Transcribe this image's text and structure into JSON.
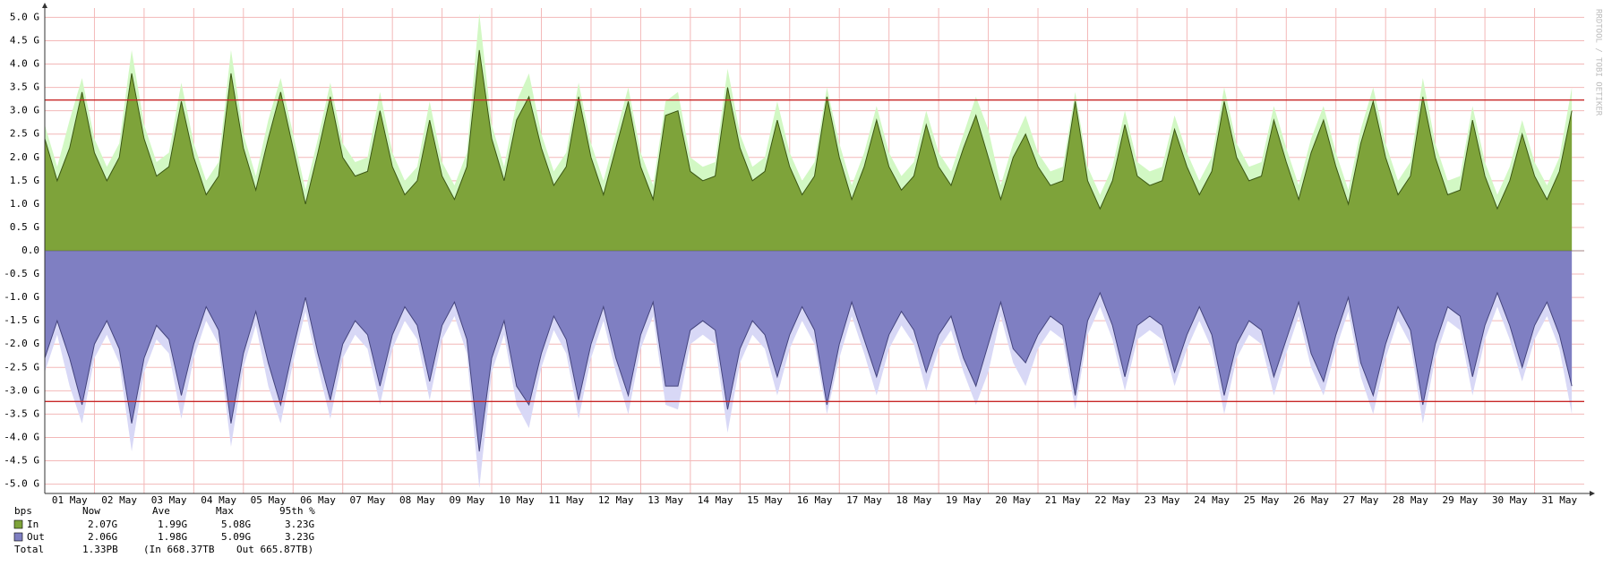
{
  "chart_data": {
    "type": "area",
    "watermark": "RRDTOOL / TOBI OETIKER",
    "x": [
      0,
      0.25,
      0.5,
      0.75,
      1,
      1.25,
      1.5,
      1.75,
      2,
      2.25,
      2.5,
      2.75,
      3,
      3.25,
      3.5,
      3.75,
      4,
      4.25,
      4.5,
      4.75,
      5,
      5.25,
      5.5,
      5.75,
      6,
      6.25,
      6.5,
      6.75,
      7,
      7.25,
      7.5,
      7.75,
      8,
      8.25,
      8.5,
      8.75,
      9,
      9.25,
      9.5,
      9.75,
      10,
      10.25,
      10.5,
      10.75,
      11,
      11.25,
      11.5,
      11.75,
      12,
      12.25,
      12.5,
      12.75,
      13,
      13.25,
      13.5,
      13.75,
      14,
      14.25,
      14.5,
      14.75,
      15,
      15.25,
      15.5,
      15.75,
      16,
      16.25,
      16.5,
      16.75,
      17,
      17.25,
      17.5,
      17.75,
      18,
      18.25,
      18.5,
      18.75,
      19,
      19.25,
      19.5,
      19.75,
      20,
      20.25,
      20.5,
      20.75,
      21,
      21.25,
      21.5,
      21.75,
      22,
      22.25,
      22.5,
      22.75,
      23,
      23.25,
      23.5,
      23.75,
      24,
      24.25,
      24.5,
      24.75,
      25,
      25.25,
      25.5,
      25.75,
      26,
      26.25,
      26.5,
      26.75,
      27,
      27.25,
      27.5,
      27.75,
      28,
      28.25,
      28.5,
      28.75,
      29,
      29.25,
      29.5,
      29.75,
      30,
      30.25,
      30.5,
      30.75
    ],
    "xlim": [
      0,
      31
    ],
    "xticks": [
      {
        "value": 0,
        "label": "01 May"
      },
      {
        "value": 1,
        "label": "02 May"
      },
      {
        "value": 2,
        "label": "03 May"
      },
      {
        "value": 3,
        "label": "04 May"
      },
      {
        "value": 4,
        "label": "05 May"
      },
      {
        "value": 5,
        "label": "06 May"
      },
      {
        "value": 6,
        "label": "07 May"
      },
      {
        "value": 7,
        "label": "08 May"
      },
      {
        "value": 8,
        "label": "09 May"
      },
      {
        "value": 9,
        "label": "10 May"
      },
      {
        "value": 10,
        "label": "11 May"
      },
      {
        "value": 11,
        "label": "12 May"
      },
      {
        "value": 12,
        "label": "13 May"
      },
      {
        "value": 13,
        "label": "14 May"
      },
      {
        "value": 14,
        "label": "15 May"
      },
      {
        "value": 15,
        "label": "16 May"
      },
      {
        "value": 16,
        "label": "17 May"
      },
      {
        "value": 17,
        "label": "18 May"
      },
      {
        "value": 18,
        "label": "19 May"
      },
      {
        "value": 19,
        "label": "20 May"
      },
      {
        "value": 20,
        "label": "21 May"
      },
      {
        "value": 21,
        "label": "22 May"
      },
      {
        "value": 22,
        "label": "23 May"
      },
      {
        "value": 23,
        "label": "24 May"
      },
      {
        "value": 24,
        "label": "25 May"
      },
      {
        "value": 25,
        "label": "26 May"
      },
      {
        "value": 26,
        "label": "27 May"
      },
      {
        "value": 27,
        "label": "28 May"
      },
      {
        "value": 28,
        "label": "29 May"
      },
      {
        "value": 29,
        "label": "30 May"
      },
      {
        "value": 30,
        "label": "31 May"
      }
    ],
    "ylim": [
      -5.2,
      5.2
    ],
    "yticks": [
      {
        "value": 5,
        "label": "5.0 G"
      },
      {
        "value": 4.5,
        "label": "4.5 G"
      },
      {
        "value": 4,
        "label": "4.0 G"
      },
      {
        "value": 3.5,
        "label": "3.5 G"
      },
      {
        "value": 3,
        "label": "3.0 G"
      },
      {
        "value": 2.5,
        "label": "2.5 G"
      },
      {
        "value": 2,
        "label": "2.0 G"
      },
      {
        "value": 1.5,
        "label": "1.5 G"
      },
      {
        "value": 1,
        "label": "1.0 G"
      },
      {
        "value": 0.5,
        "label": "0.5 G"
      },
      {
        "value": 0,
        "label": "0.0"
      },
      {
        "value": -0.5,
        "label": "-0.5 G"
      },
      {
        "value": -1,
        "label": "-1.0 G"
      },
      {
        "value": -1.5,
        "label": "-1.5 G"
      },
      {
        "value": -2,
        "label": "-2.0 G"
      },
      {
        "value": -2.5,
        "label": "-2.5 G"
      },
      {
        "value": -3,
        "label": "-3.0 G"
      },
      {
        "value": -3.5,
        "label": "-3.5 G"
      },
      {
        "value": -4,
        "label": "-4.0 G"
      },
      {
        "value": -4.5,
        "label": "-4.5 G"
      },
      {
        "value": -5,
        "label": "-5.0 G"
      }
    ],
    "grid": true,
    "grid_color": "#f3b8b8",
    "hlines": [
      3.23,
      -3.23
    ],
    "hline_color": "#c82828",
    "series": [
      {
        "name": "In",
        "color": "#7ea33a",
        "line_color": "#3b5714",
        "max_color": "#d2f8c4",
        "values": [
          2.4,
          1.5,
          2.2,
          3.4,
          2.1,
          1.5,
          2.0,
          3.8,
          2.4,
          1.6,
          1.8,
          3.2,
          2.0,
          1.2,
          1.6,
          3.8,
          2.2,
          1.3,
          2.4,
          3.4,
          2.2,
          1.0,
          2.1,
          3.3,
          2.0,
          1.6,
          1.7,
          3.0,
          1.8,
          1.2,
          1.5,
          2.8,
          1.6,
          1.1,
          1.8,
          4.3,
          2.4,
          1.5,
          2.8,
          3.3,
          2.2,
          1.4,
          1.8,
          3.3,
          2.0,
          1.2,
          2.2,
          3.2,
          1.8,
          1.1,
          2.9,
          3.0,
          1.7,
          1.5,
          1.6,
          3.5,
          2.2,
          1.5,
          1.7,
          2.8,
          1.8,
          1.2,
          1.6,
          3.3,
          2.0,
          1.1,
          1.8,
          2.8,
          1.8,
          1.3,
          1.6,
          2.7,
          1.8,
          1.4,
          2.2,
          2.9,
          2.0,
          1.1,
          2.0,
          2.5,
          1.8,
          1.4,
          1.5,
          3.2,
          1.5,
          0.9,
          1.5,
          2.7,
          1.6,
          1.4,
          1.5,
          2.6,
          1.8,
          1.2,
          1.7,
          3.2,
          2.0,
          1.5,
          1.6,
          2.8,
          1.9,
          1.1,
          2.1,
          2.8,
          1.8,
          1.0,
          2.3,
          3.2,
          2.0,
          1.2,
          1.6,
          3.3,
          2.0,
          1.2,
          1.3,
          2.8,
          1.6,
          0.9,
          1.5,
          2.5,
          1.6,
          1.1,
          1.7,
          3.0
        ],
        "max_values": [
          2.7,
          1.8,
          2.8,
          3.7,
          2.4,
          1.8,
          2.3,
          4.3,
          2.7,
          1.9,
          2.1,
          3.6,
          2.3,
          1.5,
          1.9,
          4.3,
          2.5,
          1.6,
          2.8,
          3.7,
          2.5,
          1.3,
          2.4,
          3.6,
          2.3,
          1.9,
          2.0,
          3.4,
          2.1,
          1.5,
          1.8,
          3.2,
          1.9,
          1.4,
          2.1,
          5.08,
          2.7,
          1.8,
          3.2,
          3.8,
          2.5,
          1.7,
          2.1,
          3.6,
          2.3,
          1.5,
          2.5,
          3.5,
          2.1,
          1.4,
          3.2,
          3.4,
          2.0,
          1.8,
          1.9,
          3.9,
          2.5,
          1.8,
          2.0,
          3.2,
          2.1,
          1.5,
          1.9,
          3.5,
          2.3,
          1.4,
          2.1,
          3.1,
          2.1,
          1.6,
          1.9,
          3.0,
          2.1,
          1.7,
          2.5,
          3.3,
          2.6,
          1.4,
          2.3,
          2.9,
          2.1,
          1.7,
          1.8,
          3.4,
          1.8,
          1.2,
          1.8,
          3.0,
          1.9,
          1.7,
          1.8,
          2.9,
          2.1,
          1.5,
          2.0,
          3.5,
          2.3,
          1.8,
          1.9,
          3.1,
          2.2,
          1.4,
          2.4,
          3.1,
          2.1,
          1.3,
          2.6,
          3.5,
          2.3,
          1.5,
          1.9,
          3.7,
          2.3,
          1.5,
          1.6,
          3.1,
          1.9,
          1.2,
          1.8,
          2.8,
          1.9,
          1.4,
          2.0,
          3.5
        ]
      },
      {
        "name": "Out",
        "color": "#7f7fc2",
        "line_color": "#45457e",
        "max_color": "#d8d8f6",
        "values": [
          -2.3,
          -1.5,
          -2.3,
          -3.3,
          -2.0,
          -1.5,
          -2.1,
          -3.7,
          -2.3,
          -1.6,
          -1.9,
          -3.1,
          -2.0,
          -1.2,
          -1.7,
          -3.7,
          -2.2,
          -1.3,
          -2.4,
          -3.3,
          -2.1,
          -1.0,
          -2.2,
          -3.2,
          -2.0,
          -1.5,
          -1.8,
          -2.9,
          -1.8,
          -1.2,
          -1.6,
          -2.8,
          -1.6,
          -1.1,
          -1.9,
          -4.3,
          -2.3,
          -1.5,
          -2.9,
          -3.3,
          -2.2,
          -1.4,
          -1.9,
          -3.2,
          -2.0,
          -1.2,
          -2.3,
          -3.1,
          -1.8,
          -1.1,
          -2.9,
          -2.9,
          -1.7,
          -1.5,
          -1.7,
          -3.4,
          -2.1,
          -1.5,
          -1.8,
          -2.7,
          -1.8,
          -1.2,
          -1.7,
          -3.3,
          -2.0,
          -1.1,
          -1.9,
          -2.7,
          -1.8,
          -1.3,
          -1.7,
          -2.6,
          -1.8,
          -1.4,
          -2.3,
          -2.9,
          -2.0,
          -1.1,
          -2.1,
          -2.4,
          -1.8,
          -1.4,
          -1.6,
          -3.1,
          -1.5,
          -0.9,
          -1.6,
          -2.7,
          -1.6,
          -1.4,
          -1.6,
          -2.6,
          -1.8,
          -1.2,
          -1.8,
          -3.1,
          -2.0,
          -1.5,
          -1.7,
          -2.7,
          -1.9,
          -1.1,
          -2.2,
          -2.8,
          -1.8,
          -1.0,
          -2.4,
          -3.1,
          -2.0,
          -1.2,
          -1.7,
          -3.3,
          -2.0,
          -1.2,
          -1.4,
          -2.7,
          -1.6,
          -0.9,
          -1.6,
          -2.5,
          -1.6,
          -1.1,
          -1.8,
          -2.9
        ],
        "max_values": [
          -2.6,
          -1.8,
          -2.9,
          -3.7,
          -2.3,
          -1.8,
          -2.4,
          -4.3,
          -2.6,
          -1.9,
          -2.2,
          -3.6,
          -2.3,
          -1.5,
          -2.0,
          -4.2,
          -2.5,
          -1.6,
          -2.9,
          -3.7,
          -2.4,
          -1.3,
          -2.5,
          -3.6,
          -2.3,
          -1.8,
          -2.1,
          -3.3,
          -2.1,
          -1.5,
          -1.9,
          -3.2,
          -1.9,
          -1.4,
          -2.2,
          -5.09,
          -2.6,
          -1.8,
          -3.3,
          -3.8,
          -2.5,
          -1.7,
          -2.2,
          -3.6,
          -2.3,
          -1.5,
          -2.6,
          -3.5,
          -2.1,
          -1.4,
          -3.3,
          -3.4,
          -2.0,
          -1.8,
          -2.0,
          -3.9,
          -2.4,
          -1.8,
          -2.1,
          -3.1,
          -2.1,
          -1.5,
          -2.0,
          -3.5,
          -2.3,
          -1.4,
          -2.2,
          -3.1,
          -2.1,
          -1.6,
          -2.0,
          -3.0,
          -2.1,
          -1.7,
          -2.6,
          -3.3,
          -2.6,
          -1.4,
          -2.4,
          -2.9,
          -2.1,
          -1.7,
          -1.9,
          -3.4,
          -1.8,
          -1.2,
          -1.9,
          -3.0,
          -1.9,
          -1.7,
          -1.9,
          -2.9,
          -2.1,
          -1.5,
          -2.1,
          -3.5,
          -2.3,
          -1.8,
          -2.0,
          -3.1,
          -2.2,
          -1.4,
          -2.5,
          -3.1,
          -2.1,
          -1.3,
          -2.7,
          -3.5,
          -2.3,
          -1.5,
          -2.0,
          -3.7,
          -2.3,
          -1.5,
          -1.7,
          -3.1,
          -1.9,
          -1.2,
          -1.9,
          -2.8,
          -1.9,
          -1.4,
          -2.1,
          -3.5
        ]
      }
    ],
    "legend": {
      "header": [
        "bps",
        "Now",
        "Ave",
        "Max",
        "95th %"
      ],
      "rows": [
        [
          "In",
          "2.07G",
          "1.99G",
          "5.08G",
          "3.23G"
        ],
        [
          "Out",
          "2.06G",
          "1.98G",
          "5.09G",
          "3.23G"
        ]
      ],
      "total": [
        "Total",
        "1.33PB",
        "(In 668.37TB",
        "Out 665.87TB)"
      ]
    }
  }
}
